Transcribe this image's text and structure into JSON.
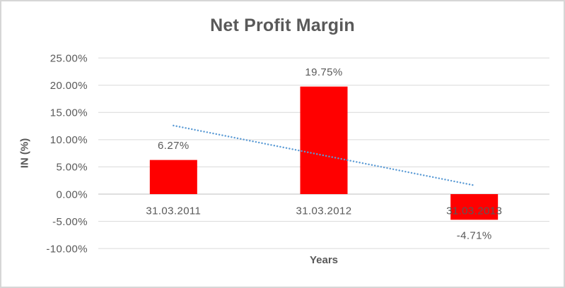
{
  "chart": {
    "title": "Net Profit Margin",
    "x_axis_title": "Years",
    "y_axis_title": "IN (%)"
  },
  "chart_data": {
    "type": "bar",
    "title": "Net Profit Margin",
    "xlabel": "Years",
    "ylabel": "IN (%)",
    "categories": [
      "31.03.2011",
      "31.03.2012",
      "31.03.2013"
    ],
    "values": [
      6.27,
      19.75,
      -4.71
    ],
    "data_labels": [
      "6.27%",
      "19.75%",
      "-4.71%"
    ],
    "ylim": [
      -10,
      25
    ],
    "ytick_step": 5,
    "yticks": [
      {
        "value": 25,
        "label": "25.00%"
      },
      {
        "value": 20,
        "label": "20.00%"
      },
      {
        "value": 15,
        "label": "15.00%"
      },
      {
        "value": 10,
        "label": "10.00%"
      },
      {
        "value": 5,
        "label": "5.00%"
      },
      {
        "value": 0,
        "label": "0.00%"
      },
      {
        "value": -5,
        "label": "-5.00%"
      },
      {
        "value": -10,
        "label": "-10.00%"
      }
    ],
    "grid": true,
    "legend": false,
    "trendline": {
      "type": "linear",
      "style": "dotted"
    },
    "colors": {
      "bar": "#FF0000",
      "trendline": "#5B9BD5",
      "text": "#595959",
      "gridline": "#D9D9D9",
      "axis_line": "#BFBFBF",
      "frame_border": "#D6D6D6",
      "background": "#FFFFFF"
    }
  }
}
